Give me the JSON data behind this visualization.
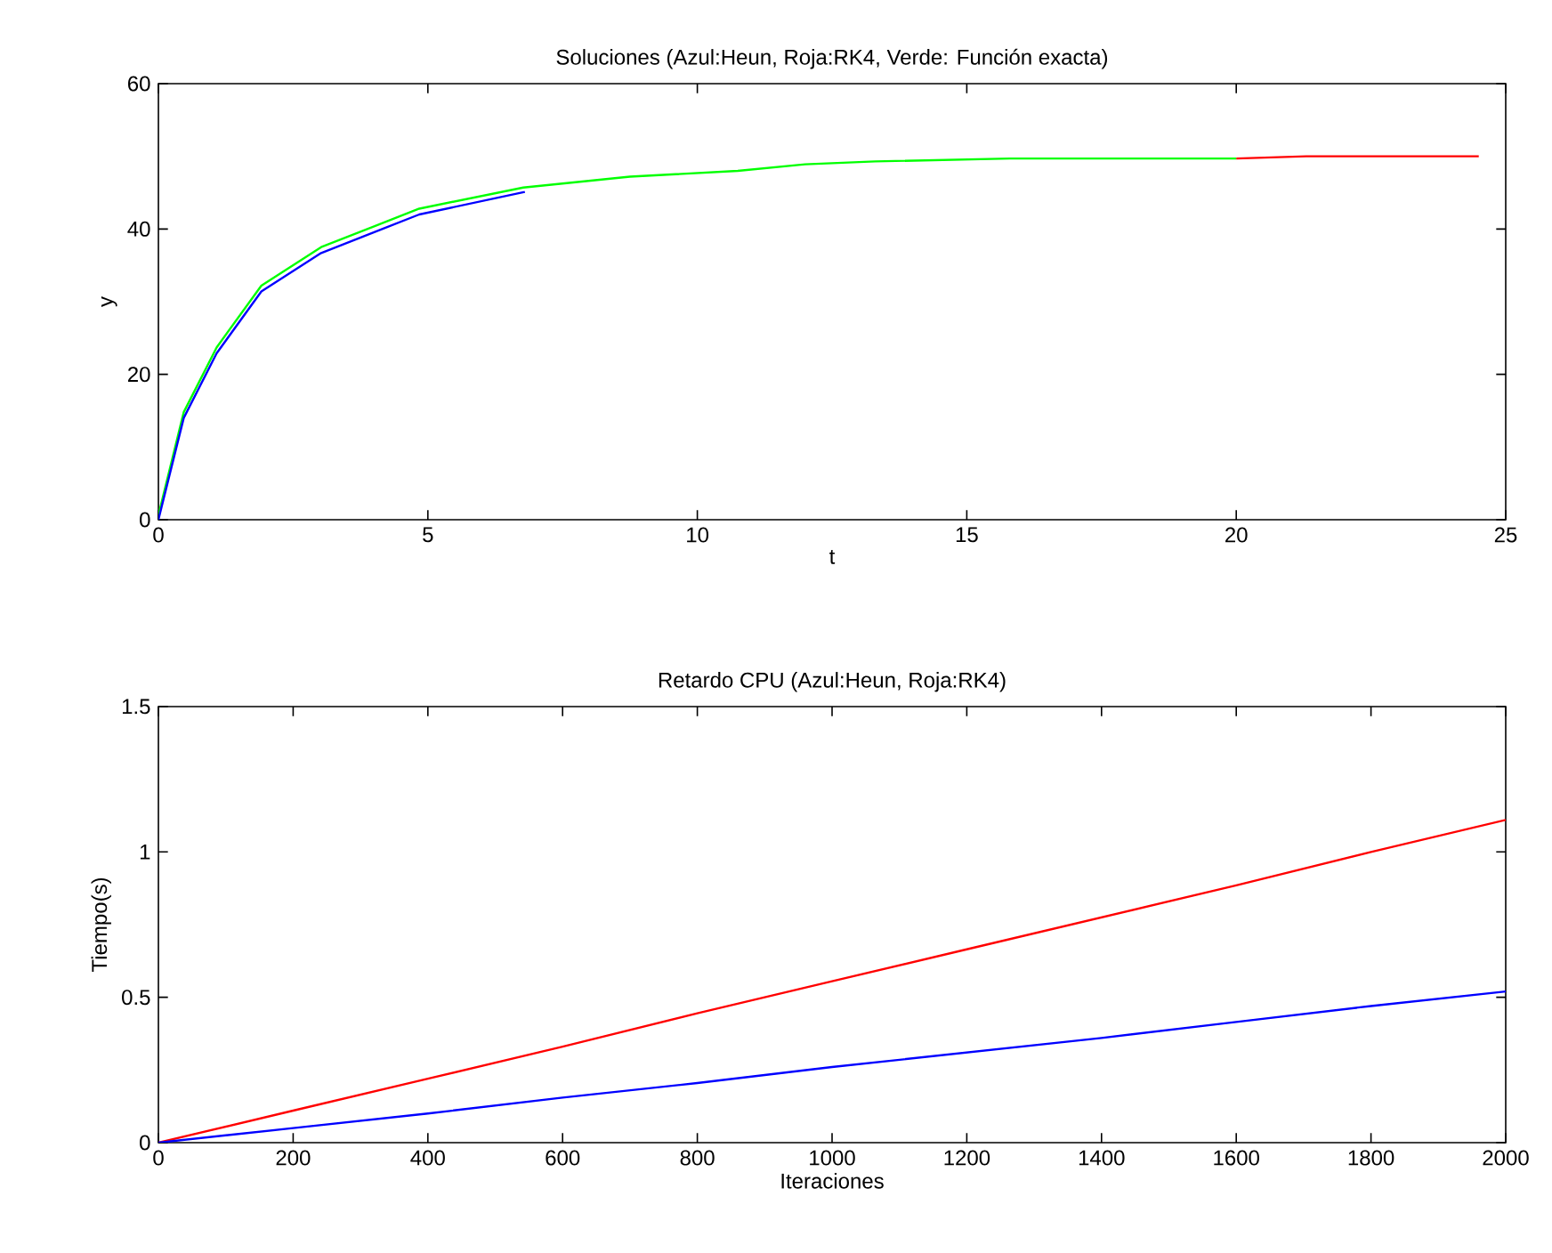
{
  "chart_data": [
    {
      "type": "line",
      "title": "Soluciones (Azul:Heun, Roja:RK4, Verde: Función exacta)",
      "xlabel": "t",
      "ylabel": "y",
      "xlim": [
        0,
        25
      ],
      "ylim": [
        0,
        60
      ],
      "xticks": [
        0,
        5,
        10,
        15,
        20,
        25
      ],
      "yticks": [
        0,
        20,
        40,
        60
      ],
      "series": [
        {
          "color": "#ff0000",
          "x": [
            20,
            21.3,
            24.5
          ],
          "values": [
            49.7,
            50.0,
            50.0
          ]
        },
        {
          "color": "#00ff00",
          "x": [
            0,
            0.47,
            1.08,
            1.91,
            3.02,
            4.84,
            6.77,
            8.75,
            10.75,
            12,
            13.3,
            15.8,
            20
          ],
          "values": [
            0.6,
            14.8,
            23.7,
            32.2,
            37.5,
            42.8,
            45.7,
            47.2,
            48.0,
            48.9,
            49.3,
            49.7,
            49.7
          ]
        },
        {
          "color": "#0000ff",
          "x": [
            0,
            0.47,
            1.08,
            1.91,
            3.02,
            4.84,
            6.8
          ],
          "values": [
            0,
            14.0,
            22.9,
            31.4,
            36.7,
            42.0,
            45.1
          ]
        }
      ]
    },
    {
      "type": "line",
      "title": "Retardo CPU (Azul:Heun, Roja:RK4)",
      "xlabel": "Iteraciones",
      "ylabel": "Tiempo(s)",
      "xlim": [
        0,
        2000
      ],
      "ylim": [
        0,
        1.5
      ],
      "xticks": [
        0,
        200,
        400,
        600,
        800,
        1000,
        1200,
        1400,
        1600,
        1800,
        2000
      ],
      "yticks": [
        0,
        0.5,
        1,
        1.5
      ],
      "series": [
        {
          "color": "#ff0000",
          "x": [
            0,
            200,
            400,
            600,
            800,
            1000,
            1200,
            1400,
            1600,
            1800,
            2000
          ],
          "values": [
            0,
            0.11,
            0.22,
            0.33,
            0.445,
            0.555,
            0.665,
            0.775,
            0.885,
            1.0,
            1.11
          ]
        },
        {
          "color": "#0000ff",
          "x": [
            0,
            200,
            400,
            600,
            800,
            1000,
            1200,
            1400,
            1600,
            1800,
            2000
          ],
          "values": [
            0,
            0.05,
            0.1,
            0.155,
            0.205,
            0.26,
            0.31,
            0.36,
            0.415,
            0.47,
            0.52
          ]
        }
      ]
    }
  ]
}
